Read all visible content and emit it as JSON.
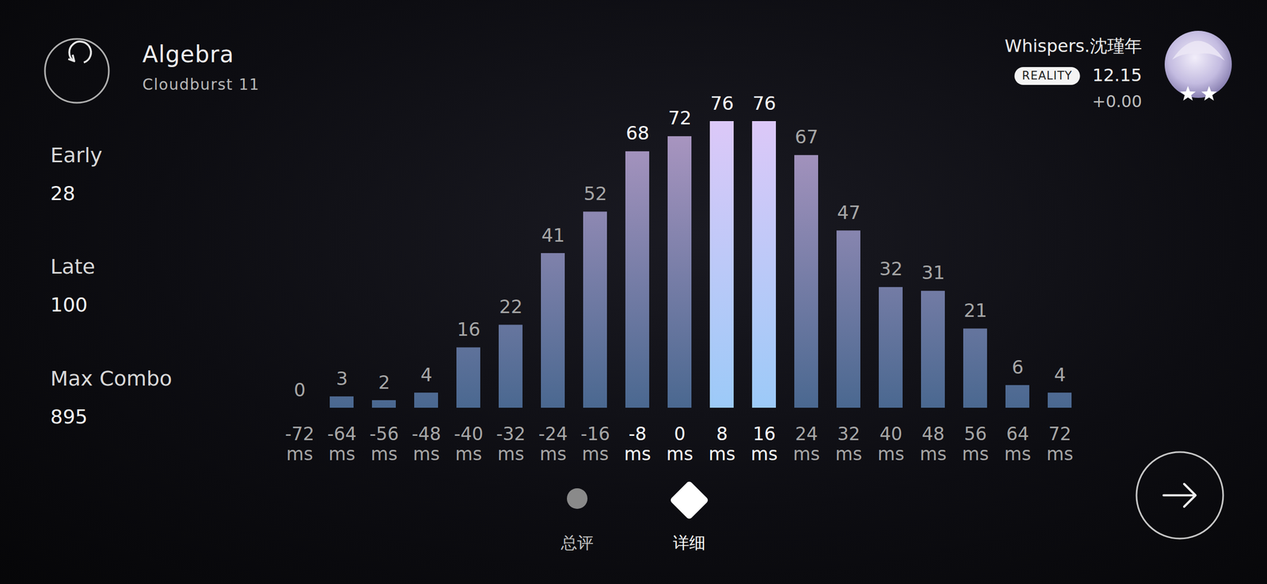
{
  "header": {
    "title": "Algebra",
    "difficulty": "Cloudburst 11"
  },
  "stats": [
    {
      "label": "Early",
      "value": 28
    },
    {
      "label": "Late",
      "value": 100
    },
    {
      "label": "Max Combo",
      "value": 895
    }
  ],
  "player": {
    "name": "Whispers.沈瑾年",
    "badge": "REALITY",
    "rating": "12.15",
    "change": "+0.00"
  },
  "chart_data": {
    "type": "bar",
    "categories": [
      "-72 ms",
      "-64 ms",
      "-56 ms",
      "-48 ms",
      "-40 ms",
      "-32 ms",
      "-24 ms",
      "-16 ms",
      "-8 ms",
      "0 ms",
      "8 ms",
      "16 ms",
      "24 ms",
      "32 ms",
      "40 ms",
      "48 ms",
      "56 ms",
      "64 ms",
      "72 ms"
    ],
    "values": [
      0,
      3,
      2,
      4,
      16,
      22,
      41,
      52,
      68,
      72,
      76,
      76,
      67,
      47,
      32,
      31,
      21,
      6,
      4
    ],
    "ylim": [
      0,
      76
    ],
    "data_labels": true,
    "tick_labels": "x",
    "grid": false
  },
  "tabs": [
    {
      "label": "总评",
      "active": false
    },
    {
      "label": "详细",
      "active": true
    }
  ]
}
